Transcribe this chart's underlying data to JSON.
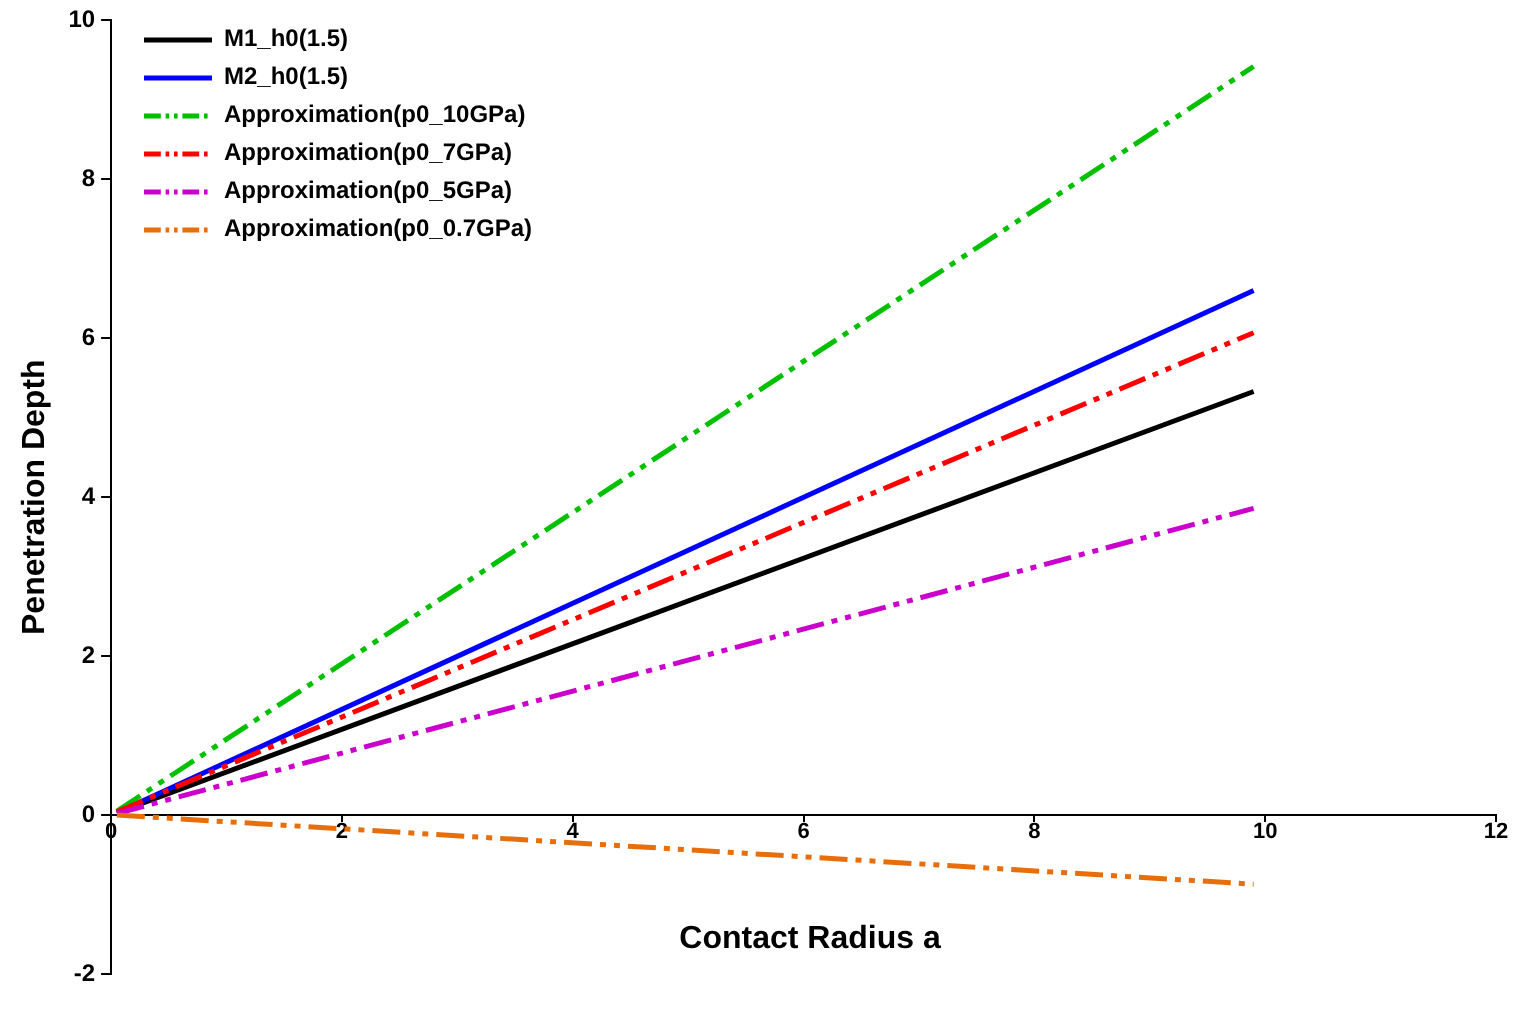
{
  "chart_data": {
    "type": "line",
    "xlabel": "Contact Radius a",
    "ylabel": "Penetration Depth",
    "xlim": [
      0,
      12
    ],
    "xticks": [
      0,
      2,
      4,
      6,
      8,
      10,
      12
    ],
    "ylim": [
      -2,
      10
    ],
    "yticks": [
      -2,
      0,
      2,
      4,
      6,
      8,
      10
    ],
    "grid": false,
    "legend": "top left",
    "marker": "none",
    "x": [
      0.05,
      9.9
    ],
    "series": [
      {
        "name": "M1_h0(1.5)",
        "color": "#000000",
        "values": [
          0.03,
          5.33
        ],
        "line_style": "solid"
      },
      {
        "name": "M2_h0(1.5)",
        "color": "#0000ff",
        "values": [
          0.03,
          6.6
        ],
        "line_style": "solid"
      },
      {
        "name": "Approximation(p0_10GPa)",
        "color": "#00c000",
        "values": [
          0.05,
          9.42
        ],
        "line_style": "dashed"
      },
      {
        "name": "Approximation(p0_7GPa)",
        "color": "#ff0000",
        "values": [
          0.04,
          6.07
        ],
        "line_style": "dashed"
      },
      {
        "name": "Approximation(p0_5GPa)",
        "color": "#cc00cc",
        "values": [
          0.02,
          3.86
        ],
        "line_style": "dashed"
      },
      {
        "name": "Approximation(p0_0.7GPa)",
        "color": "#e86e0a",
        "values": [
          0,
          -0.87
        ],
        "line_style": "dashed"
      }
    ]
  }
}
